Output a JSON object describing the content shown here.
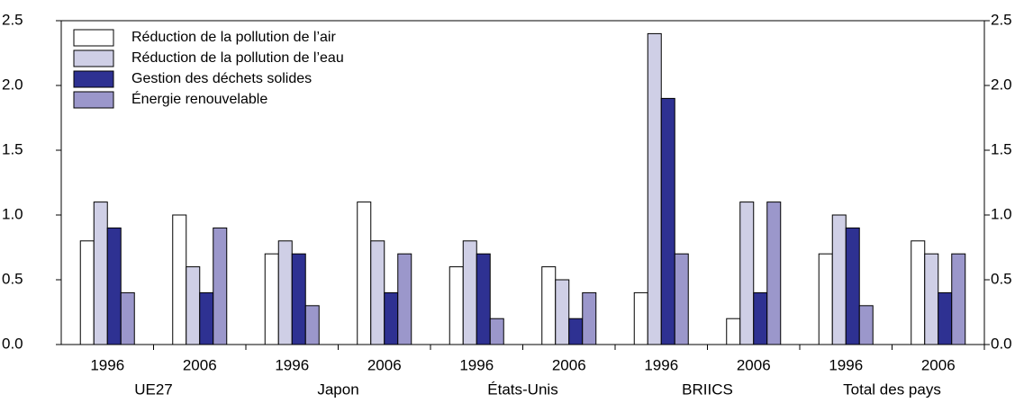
{
  "chart_data": {
    "type": "bar",
    "categories": [
      "1996",
      "2006",
      "1996",
      "2006",
      "1996",
      "2006",
      "1996",
      "2006",
      "1996",
      "2006"
    ],
    "groups": [
      "UE27",
      "Japon",
      "États-Unis",
      "BRIICS",
      "Total des pays"
    ],
    "series": [
      {
        "name": "Réduction de la pollution de l’air",
        "color": "#ffffff",
        "values": [
          0.8,
          1.0,
          0.7,
          1.1,
          0.6,
          0.6,
          0.4,
          0.2,
          0.7,
          0.8
        ]
      },
      {
        "name": "Réduction de la pollution de l’eau",
        "color": "#cfcfe6",
        "values": [
          1.1,
          0.6,
          0.8,
          0.8,
          0.8,
          0.5,
          2.4,
          1.1,
          1.0,
          0.7
        ]
      },
      {
        "name": "Gestion des déchets solides",
        "color": "#2e3192",
        "values": [
          0.9,
          0.4,
          0.7,
          0.4,
          0.7,
          0.2,
          1.9,
          0.4,
          0.9,
          0.4
        ]
      },
      {
        "name": "Énergie renouvelable",
        "color": "#9b97cb",
        "values": [
          0.4,
          0.9,
          0.3,
          0.7,
          0.2,
          0.4,
          0.7,
          1.1,
          0.3,
          0.7
        ]
      }
    ],
    "ylim": [
      0,
      2.5
    ],
    "yticks": [
      {
        "value": 0,
        "label": "0.0"
      },
      0.5,
      {
        "value": 1,
        "label": "1.0"
      },
      1.5,
      {
        "value": 2,
        "label": "2.0"
      },
      2.5
    ],
    "y2lim": [
      0,
      2.5
    ],
    "y2ticks": [
      {
        "value": 0,
        "label": "0.0"
      },
      0.5,
      {
        "value": 1,
        "label": "1.0"
      },
      1.5,
      {
        "value": 2,
        "label": "2.0"
      },
      2.5
    ],
    "legend": "upper left",
    "grid": false
  }
}
